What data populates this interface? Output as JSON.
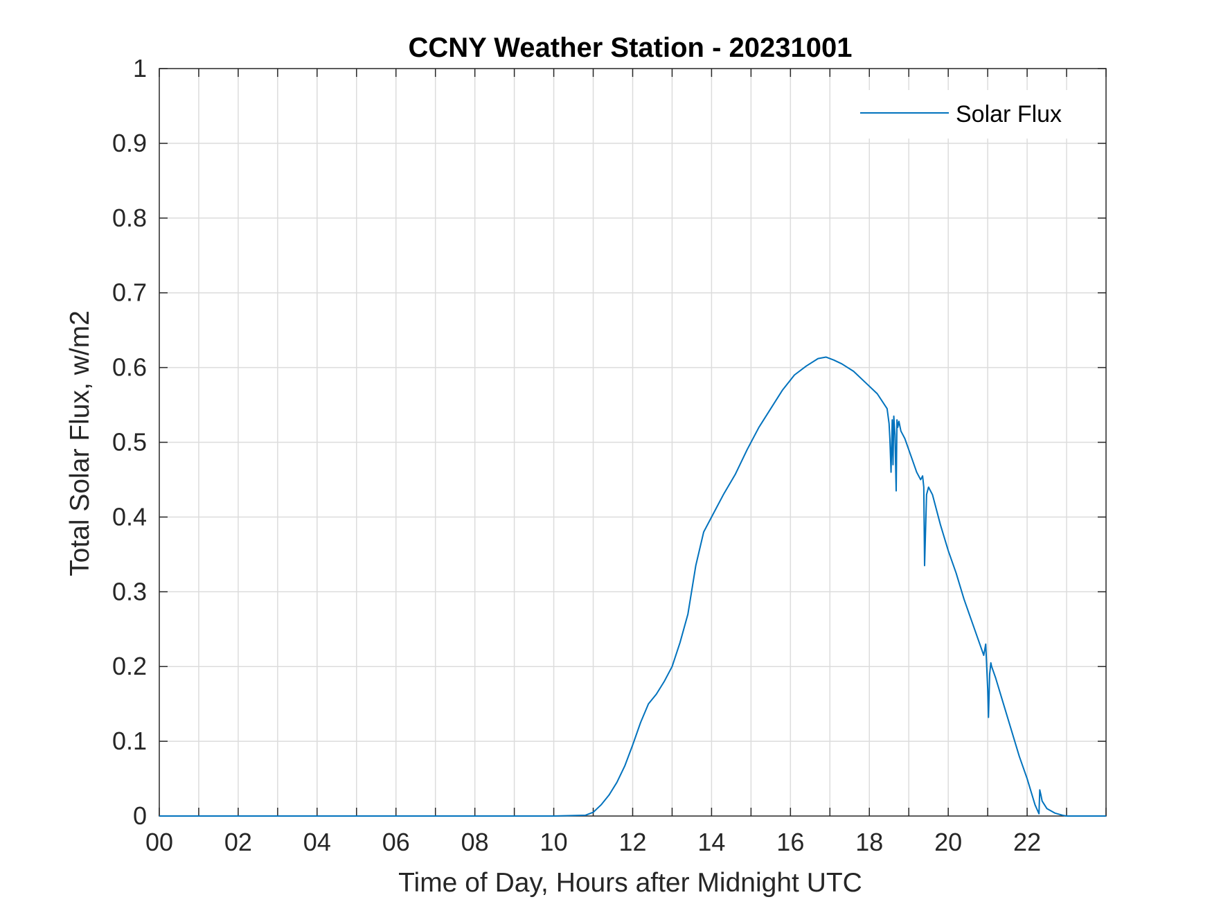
{
  "chart_data": {
    "type": "line",
    "title": "CCNY Weather Station - 20231001",
    "xlabel": "Time of Day, Hours after Midnight UTC",
    "ylabel": "Total Solar Flux, w/m2",
    "xlim": [
      0,
      24
    ],
    "ylim": [
      0,
      1
    ],
    "grid": true,
    "legend_position": "top-right",
    "line_color": "#0072BD",
    "x_ticks": [
      0,
      2,
      4,
      6,
      8,
      10,
      12,
      14,
      16,
      18,
      20,
      22
    ],
    "x_tick_labels": [
      "00",
      "02",
      "04",
      "06",
      "08",
      "10",
      "12",
      "14",
      "16",
      "18",
      "20",
      "22"
    ],
    "y_ticks": [
      0,
      0.1,
      0.2,
      0.3,
      0.4,
      0.5,
      0.6,
      0.7,
      0.8,
      0.9,
      1
    ],
    "y_tick_labels": [
      "0",
      "0.1",
      "0.2",
      "0.3",
      "0.4",
      "0.5",
      "0.6",
      "0.7",
      "0.8",
      "0.9",
      "1"
    ],
    "series": [
      {
        "name": "Solar Flux",
        "x": [
          0,
          2,
          4,
          6,
          8,
          10,
          10.8,
          11.0,
          11.2,
          11.4,
          11.6,
          11.8,
          12.0,
          12.2,
          12.4,
          12.6,
          12.8,
          13.0,
          13.2,
          13.4,
          13.6,
          13.8,
          14.0,
          14.3,
          14.6,
          14.9,
          15.2,
          15.5,
          15.8,
          16.1,
          16.4,
          16.7,
          16.9,
          17.1,
          17.3,
          17.6,
          17.9,
          18.2,
          18.45,
          18.5,
          18.52,
          18.55,
          18.58,
          18.6,
          18.62,
          18.65,
          18.68,
          18.7,
          18.72,
          18.75,
          18.8,
          18.85,
          18.9,
          19.0,
          19.1,
          19.2,
          19.3,
          19.35,
          19.38,
          19.4,
          19.45,
          19.5,
          19.6,
          19.8,
          20.0,
          20.2,
          20.4,
          20.6,
          20.8,
          20.9,
          20.95,
          21.0,
          21.02,
          21.05,
          21.08,
          21.1,
          21.2,
          21.4,
          21.6,
          21.8,
          22.0,
          22.2,
          22.3,
          22.32,
          22.35,
          22.38,
          22.5,
          22.7,
          22.9,
          23.0,
          23.5,
          24.0
        ],
        "values": [
          0,
          0,
          0,
          0,
          0,
          0,
          0.001,
          0.005,
          0.015,
          0.028,
          0.045,
          0.067,
          0.095,
          0.125,
          0.15,
          0.163,
          0.18,
          0.2,
          0.232,
          0.27,
          0.335,
          0.38,
          0.4,
          0.43,
          0.457,
          0.49,
          0.52,
          0.545,
          0.57,
          0.59,
          0.602,
          0.612,
          0.614,
          0.61,
          0.605,
          0.595,
          0.58,
          0.565,
          0.545,
          0.525,
          0.505,
          0.46,
          0.53,
          0.47,
          0.535,
          0.51,
          0.435,
          0.53,
          0.52,
          0.528,
          0.515,
          0.51,
          0.505,
          0.49,
          0.475,
          0.46,
          0.45,
          0.455,
          0.44,
          0.335,
          0.43,
          0.44,
          0.43,
          0.39,
          0.355,
          0.325,
          0.29,
          0.26,
          0.23,
          0.215,
          0.23,
          0.17,
          0.132,
          0.19,
          0.205,
          0.2,
          0.185,
          0.15,
          0.115,
          0.08,
          0.05,
          0.015,
          0.003,
          0.035,
          0.028,
          0.02,
          0.01,
          0.004,
          0.001,
          0,
          0,
          0
        ]
      }
    ]
  }
}
